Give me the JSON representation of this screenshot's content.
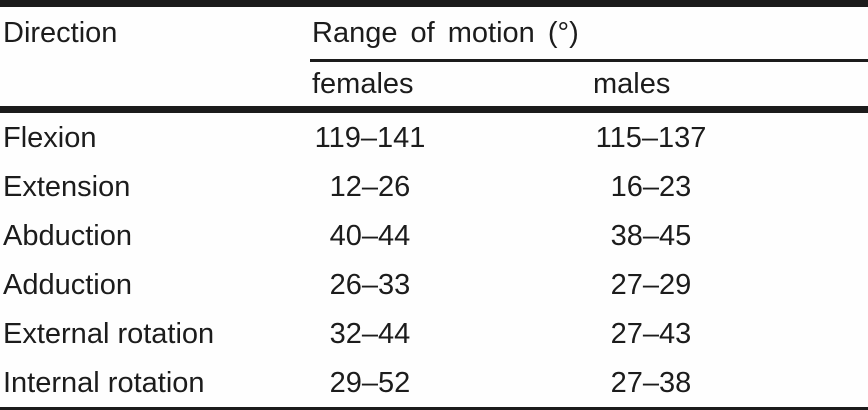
{
  "page": {
    "background": "#fefefe",
    "text_color": "#1c1c1c",
    "rule_color": "#1c1c1c"
  },
  "table": {
    "direction_header": "Direction",
    "group_header": "Range of motion (°)",
    "subheaders": {
      "females": "females",
      "males": "males"
    },
    "rows": [
      {
        "direction": "Flexion",
        "females": "119–141",
        "males": "115–137"
      },
      {
        "direction": "Extension",
        "females": "12–26",
        "males": "16–23"
      },
      {
        "direction": "Abduction",
        "females": "40–44",
        "males": "38–45"
      },
      {
        "direction": "Adduction",
        "females": "26–33",
        "males": "27–29"
      },
      {
        "direction": "External rotation",
        "females": "32–44",
        "males": "27–43"
      },
      {
        "direction": "Internal rotation",
        "females": "29–52",
        "males": "27–38"
      }
    ]
  }
}
